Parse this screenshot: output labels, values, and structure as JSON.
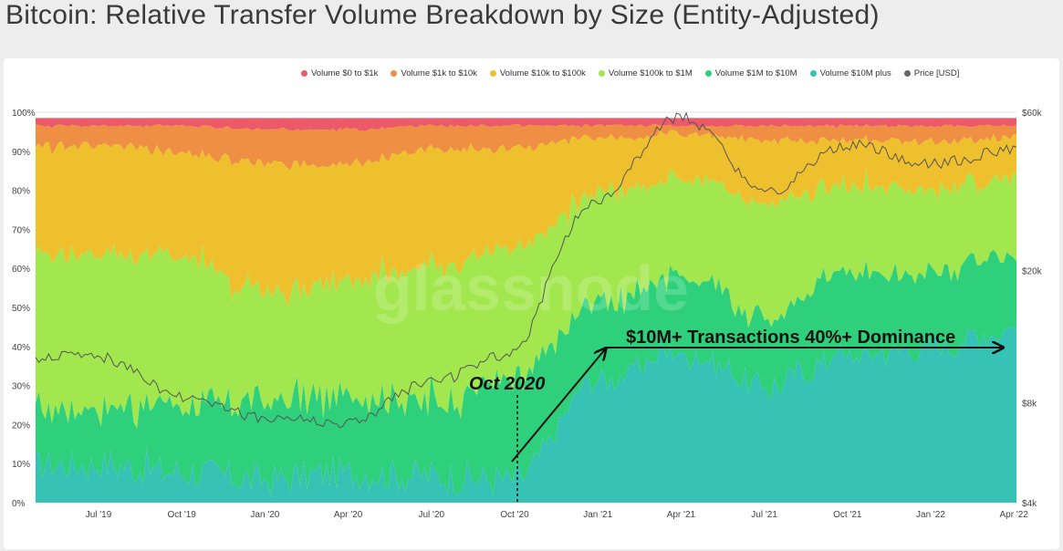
{
  "title": "Bitcoin: Relative Transfer Volume Breakdown by Size (Entity-Adjusted)",
  "watermark": "glassnode",
  "chart_data": {
    "type": "area",
    "stacked": "percent",
    "title": "Bitcoin: Relative Transfer Volume Breakdown by Size (Entity-Adjusted)",
    "x": [
      "Jul '19",
      "Oct '19",
      "Jan '20",
      "Apr '20",
      "Jul '20",
      "Oct '20",
      "Jan '21",
      "Apr '21",
      "Jul '21",
      "Oct '21",
      "Jan '22",
      "Apr '22"
    ],
    "x_ticks": [
      "Jul '19",
      "Oct '19",
      "Jan '20",
      "Apr '20",
      "Jul '20",
      "Oct '20",
      "Jan '21",
      "Apr '21",
      "Jul '21",
      "Oct '21",
      "Jan '22",
      "Apr '22"
    ],
    "y_left_ticks": [
      "0%",
      "10%",
      "20%",
      "30%",
      "40%",
      "50%",
      "60%",
      "70%",
      "80%",
      "90%",
      "100%"
    ],
    "y_right_ticks": [
      "$4k",
      "$8k",
      "$20k",
      "$60k"
    ],
    "y_right_scale": "log",
    "legend_position": "top-right",
    "series": [
      {
        "name": "Volume $10M plus",
        "color": "#36c2b4",
        "values": [
          10,
          8,
          6,
          8,
          7,
          6,
          32,
          40,
          30,
          38,
          40,
          45
        ]
      },
      {
        "name": "Volume $1M to $10M",
        "color": "#2fd07b",
        "values": [
          15,
          18,
          20,
          20,
          20,
          26,
          20,
          20,
          18,
          22,
          20,
          20
        ]
      },
      {
        "name": "Volume $100k to $1M",
        "color": "#a3e74e",
        "values": [
          40,
          38,
          28,
          30,
          35,
          34,
          28,
          25,
          30,
          22,
          22,
          20
        ]
      },
      {
        "name": "Volume $10k to $100k",
        "color": "#efc02e",
        "values": [
          28,
          27,
          34,
          30,
          30,
          26,
          15,
          11,
          16,
          12,
          12,
          10
        ]
      },
      {
        "name": "Volume $1k to $10k",
        "color": "#ee8f43",
        "values": [
          5,
          7,
          9,
          9,
          6,
          6,
          3,
          2,
          4,
          4,
          4,
          3
        ]
      },
      {
        "name": "Volume $0 to $1k",
        "color": "#ec5a6a",
        "values": [
          2,
          2,
          3,
          3,
          2,
          2,
          2,
          2,
          2,
          2,
          2,
          2
        ]
      }
    ],
    "price_series": {
      "name": "Price [USD]",
      "color": "#555555",
      "values": [
        11000,
        8300,
        7200,
        6900,
        9200,
        11300,
        32000,
        58000,
        34000,
        48000,
        42000,
        46000
      ]
    },
    "annotations": [
      {
        "text": "$10M+ Transactions 40%+ Dominance",
        "x": "Jan '21",
        "y": 40
      },
      {
        "text": "Oct 2020",
        "x": "Oct '20",
        "y": 31
      }
    ]
  },
  "legend": [
    {
      "label": "Volume $0 to $1k",
      "color": "#ec5a6a"
    },
    {
      "label": "Volume $1k to $10k",
      "color": "#ee8f43"
    },
    {
      "label": "Volume $10k to $100k",
      "color": "#efc02e"
    },
    {
      "label": "Volume $100k to $1M",
      "color": "#a3e74e"
    },
    {
      "label": "Volume $1M to $10M",
      "color": "#2fd07b"
    },
    {
      "label": "Volume $10M plus",
      "color": "#36c2b4"
    },
    {
      "label": "Price [USD]",
      "color": "#666666"
    }
  ]
}
